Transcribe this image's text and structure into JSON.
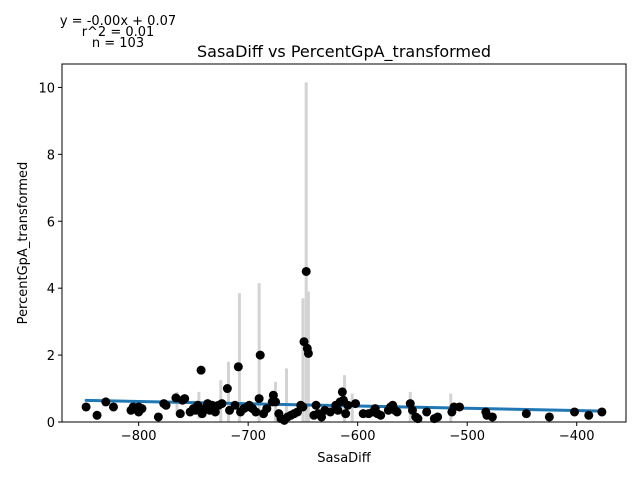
{
  "chart_data": {
    "type": "scatter",
    "title": "SasaDiff vs PercentGpA_transformed",
    "xlabel": "SasaDiff",
    "ylabel": "PercentGpA_transformed",
    "xlim": [
      -870,
      -355
    ],
    "ylim": [
      0,
      10.7
    ],
    "x_ticks": [
      -800,
      -700,
      -600,
      -500,
      -400
    ],
    "y_ticks": [
      0,
      2,
      4,
      6,
      8,
      10
    ],
    "annotations": {
      "equation": "y = -0.00x + 0.07",
      "r2": "r^2 = 0.01",
      "n": "n = 103"
    },
    "colors": {
      "points": "#000000",
      "fit": "#1f77b4",
      "error_bars": "#d3d3d3"
    },
    "fit_line": {
      "slope": -0.00068,
      "intercept": 0.07,
      "x_range": [
        -848,
        -375
      ]
    },
    "error_bars": [
      {
        "x": -765,
        "y": 0.55,
        "lo": 0.2,
        "hi": 0.9
      },
      {
        "x": -745,
        "y": 0.5,
        "lo": 0.1,
        "hi": 0.9
      },
      {
        "x": -725,
        "y": 0.55,
        "lo": 0.0,
        "hi": 1.25
      },
      {
        "x": -718,
        "y": 0.9,
        "lo": 0.0,
        "hi": 1.8
      },
      {
        "x": -708,
        "y": 1.5,
        "lo": 0.0,
        "hi": 3.85
      },
      {
        "x": -690,
        "y": 1.7,
        "lo": 0.0,
        "hi": 4.15
      },
      {
        "x": -675,
        "y": 0.7,
        "lo": 0.0,
        "hi": 1.2
      },
      {
        "x": -665,
        "y": 0.8,
        "lo": 0.0,
        "hi": 1.6
      },
      {
        "x": -650,
        "y": 2.0,
        "lo": 0.0,
        "hi": 3.7
      },
      {
        "x": -647,
        "y": 4.5,
        "lo": 0.0,
        "hi": 10.15
      },
      {
        "x": -645,
        "y": 2.2,
        "lo": 0.0,
        "hi": 3.9
      },
      {
        "x": -612,
        "y": 0.8,
        "lo": 0.0,
        "hi": 1.4
      },
      {
        "x": -605,
        "y": 0.6,
        "lo": 0.0,
        "hi": 0.85
      },
      {
        "x": -552,
        "y": 0.5,
        "lo": 0.0,
        "hi": 0.9
      },
      {
        "x": -515,
        "y": 0.5,
        "lo": 0.0,
        "hi": 0.85
      }
    ],
    "points": [
      {
        "x": -848,
        "y": 0.45
      },
      {
        "x": -838,
        "y": 0.2
      },
      {
        "x": -830,
        "y": 0.6
      },
      {
        "x": -823,
        "y": 0.45
      },
      {
        "x": -807,
        "y": 0.35
      },
      {
        "x": -805,
        "y": 0.45
      },
      {
        "x": -800,
        "y": 0.45
      },
      {
        "x": -797,
        "y": 0.4
      },
      {
        "x": -782,
        "y": 0.15
      },
      {
        "x": -777,
        "y": 0.55
      },
      {
        "x": -775,
        "y": 0.5
      },
      {
        "x": -766,
        "y": 0.72
      },
      {
        "x": -762,
        "y": 0.25
      },
      {
        "x": -760,
        "y": 0.65
      },
      {
        "x": -758,
        "y": 0.7
      },
      {
        "x": -753,
        "y": 0.3
      },
      {
        "x": -750,
        "y": 0.4
      },
      {
        "x": -748,
        "y": 0.35
      },
      {
        "x": -746,
        "y": 0.5
      },
      {
        "x": -743,
        "y": 1.55
      },
      {
        "x": -742,
        "y": 0.25
      },
      {
        "x": -740,
        "y": 0.4
      },
      {
        "x": -737,
        "y": 0.55
      },
      {
        "x": -733,
        "y": 0.5
      },
      {
        "x": -730,
        "y": 0.3
      },
      {
        "x": -727,
        "y": 0.5
      },
      {
        "x": -724,
        "y": 0.55
      },
      {
        "x": -719,
        "y": 1.0
      },
      {
        "x": -717,
        "y": 0.35
      },
      {
        "x": -712,
        "y": 0.5
      },
      {
        "x": -709,
        "y": 1.65
      },
      {
        "x": -707,
        "y": 0.3
      },
      {
        "x": -704,
        "y": 0.4
      },
      {
        "x": -701,
        "y": 0.45
      },
      {
        "x": -699,
        "y": 0.5
      },
      {
        "x": -696,
        "y": 0.4
      },
      {
        "x": -693,
        "y": 0.3
      },
      {
        "x": -690,
        "y": 0.7
      },
      {
        "x": -689,
        "y": 2.0
      },
      {
        "x": -686,
        "y": 0.25
      },
      {
        "x": -683,
        "y": 0.4
      },
      {
        "x": -678,
        "y": 0.6
      },
      {
        "x": -677,
        "y": 0.8
      },
      {
        "x": -675,
        "y": 0.6
      },
      {
        "x": -672,
        "y": 0.25
      },
      {
        "x": -670,
        "y": 0.1
      },
      {
        "x": -667,
        "y": 0.05
      },
      {
        "x": -664,
        "y": 0.15
      },
      {
        "x": -661,
        "y": 0.2
      },
      {
        "x": -658,
        "y": 0.25
      },
      {
        "x": -655,
        "y": 0.3
      },
      {
        "x": -652,
        "y": 0.5
      },
      {
        "x": -650,
        "y": 0.45
      },
      {
        "x": -649,
        "y": 2.4
      },
      {
        "x": -647,
        "y": 4.5
      },
      {
        "x": -646,
        "y": 2.2
      },
      {
        "x": -645,
        "y": 2.05
      },
      {
        "x": -640,
        "y": 0.2
      },
      {
        "x": -638,
        "y": 0.5
      },
      {
        "x": -636,
        "y": 0.25
      },
      {
        "x": -633,
        "y": 0.15
      },
      {
        "x": -630,
        "y": 0.35
      },
      {
        "x": -625,
        "y": 0.3
      },
      {
        "x": -620,
        "y": 0.5
      },
      {
        "x": -618,
        "y": 0.35
      },
      {
        "x": -616,
        "y": 0.6
      },
      {
        "x": -614,
        "y": 0.9
      },
      {
        "x": -613,
        "y": 0.65
      },
      {
        "x": -611,
        "y": 0.25
      },
      {
        "x": -609,
        "y": 0.5
      },
      {
        "x": -602,
        "y": 0.55
      },
      {
        "x": -595,
        "y": 0.25
      },
      {
        "x": -590,
        "y": 0.25
      },
      {
        "x": -586,
        "y": 0.3
      },
      {
        "x": -584,
        "y": 0.4
      },
      {
        "x": -582,
        "y": 0.25
      },
      {
        "x": -579,
        "y": 0.2
      },
      {
        "x": -572,
        "y": 0.35
      },
      {
        "x": -570,
        "y": 0.45
      },
      {
        "x": -568,
        "y": 0.5
      },
      {
        "x": -566,
        "y": 0.35
      },
      {
        "x": -564,
        "y": 0.3
      },
      {
        "x": -552,
        "y": 0.55
      },
      {
        "x": -550,
        "y": 0.35
      },
      {
        "x": -547,
        "y": 0.15
      },
      {
        "x": -545,
        "y": 0.1
      },
      {
        "x": -537,
        "y": 0.3
      },
      {
        "x": -530,
        "y": 0.1
      },
      {
        "x": -527,
        "y": 0.15
      },
      {
        "x": -514,
        "y": 0.3
      },
      {
        "x": -512,
        "y": 0.45
      },
      {
        "x": -507,
        "y": 0.45
      },
      {
        "x": -483,
        "y": 0.3
      },
      {
        "x": -482,
        "y": 0.2
      },
      {
        "x": -477,
        "y": 0.15
      },
      {
        "x": -446,
        "y": 0.25
      },
      {
        "x": -425,
        "y": 0.15
      },
      {
        "x": -402,
        "y": 0.3
      },
      {
        "x": -389,
        "y": 0.2
      },
      {
        "x": -377,
        "y": 0.3
      },
      {
        "x": -620,
        "y": 0.4
      },
      {
        "x": -735,
        "y": 0.35
      },
      {
        "x": -800,
        "y": 0.3
      }
    ]
  }
}
